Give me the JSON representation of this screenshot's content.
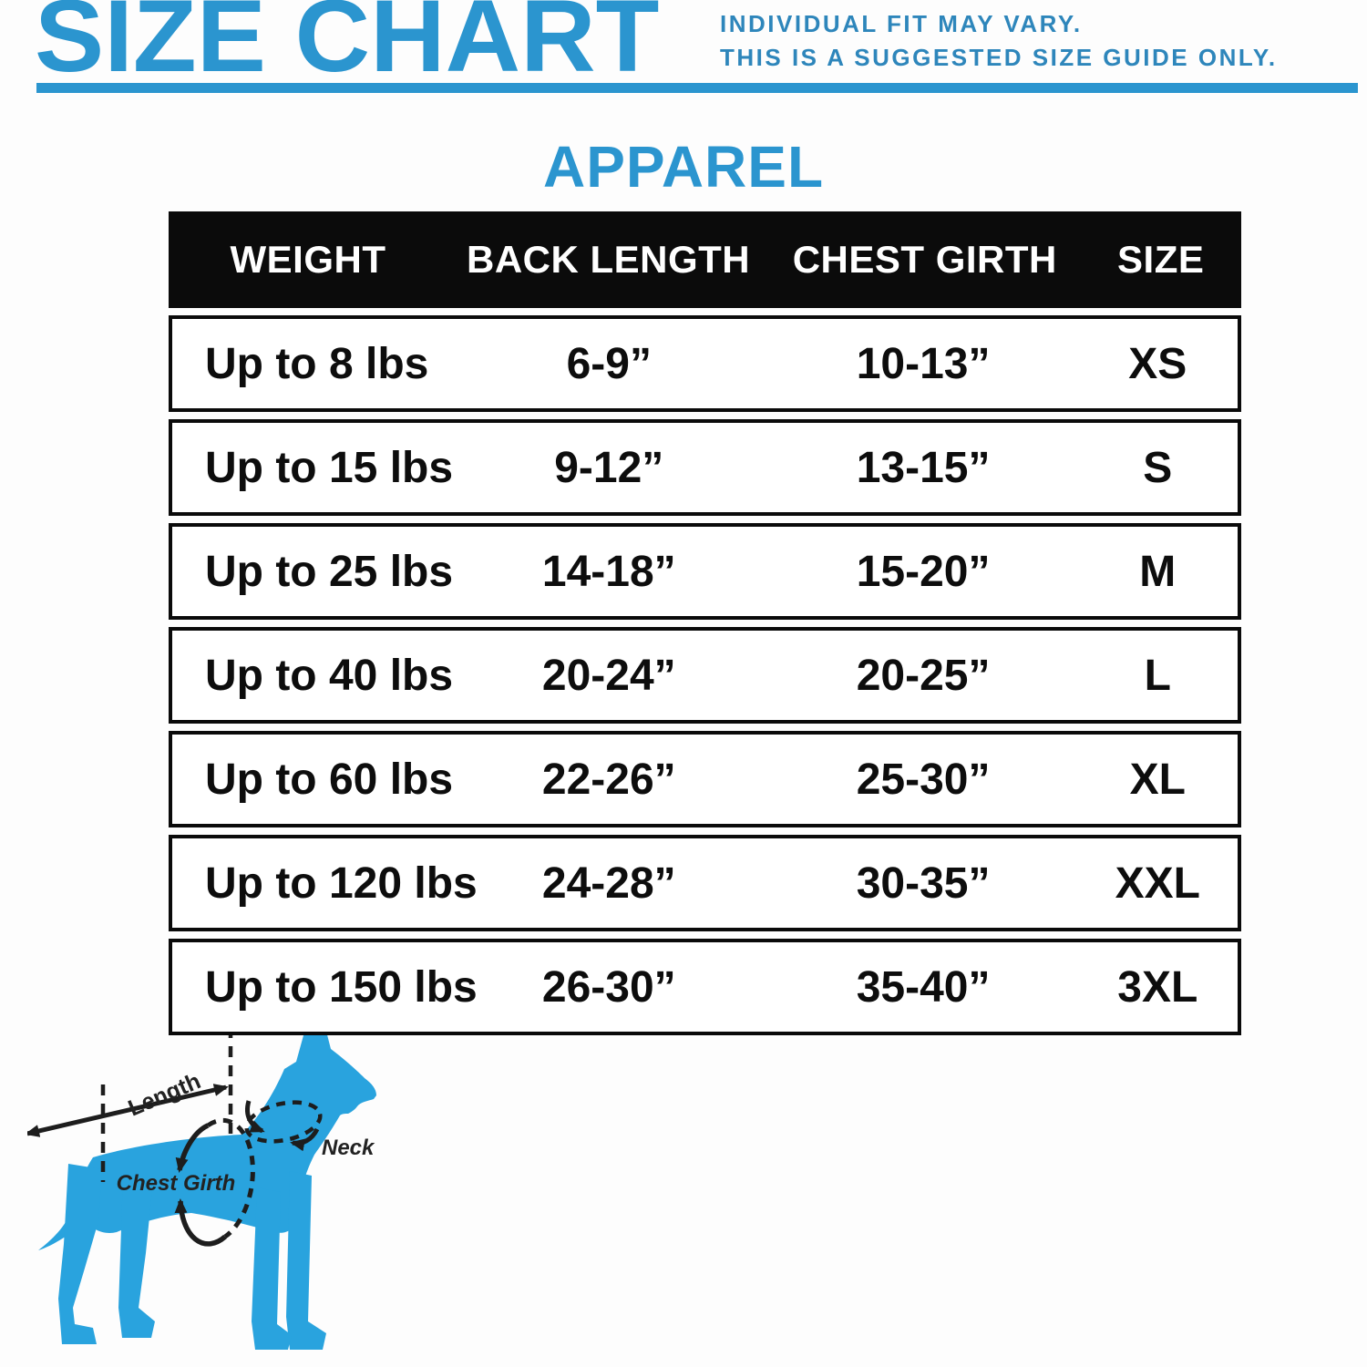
{
  "header": {
    "title": "SIZE CHART",
    "note_line1": "INDIVIDUAL FIT MAY VARY.",
    "note_line2": "THIS IS A SUGGESTED SIZE GUIDE ONLY."
  },
  "section": {
    "title": "APPAREL"
  },
  "table": {
    "columns": [
      "WEIGHT",
      "BACK LENGTH",
      "CHEST GIRTH",
      "SIZE"
    ],
    "rows": [
      {
        "weight": "Up to 8 lbs",
        "back_length": "6-9”",
        "chest_girth": "10-13”",
        "size": "XS"
      },
      {
        "weight": "Up to 15 lbs",
        "back_length": "9-12”",
        "chest_girth": "13-15”",
        "size": "S"
      },
      {
        "weight": "Up to 25 lbs",
        "back_length": "14-18”",
        "chest_girth": "15-20”",
        "size": "M"
      },
      {
        "weight": "Up to 40 lbs",
        "back_length": "20-24”",
        "chest_girth": "20-25”",
        "size": "L"
      },
      {
        "weight": "Up to 60 lbs",
        "back_length": "22-26”",
        "chest_girth": "25-30”",
        "size": "XL"
      },
      {
        "weight": "Up to 120 lbs",
        "back_length": "24-28”",
        "chest_girth": "30-35”",
        "size": "XXL"
      },
      {
        "weight": "Up to 150 lbs",
        "back_length": "26-30”",
        "chest_girth": "35-40”",
        "size": "3XL"
      }
    ]
  },
  "diagram": {
    "labels": {
      "length": "Length",
      "neck": "Neck",
      "chest_girth": "Chest Girth"
    }
  },
  "colors": {
    "title_blue": "#2b95cf",
    "note_blue": "#2e86bb",
    "dog_blue": "#29a3de",
    "header_bg": "#0b0b0b",
    "header_text": "#ffffff",
    "row_text": "#0d0d0d",
    "annotation": "#222222",
    "page_bg": "#fdfdfd"
  }
}
